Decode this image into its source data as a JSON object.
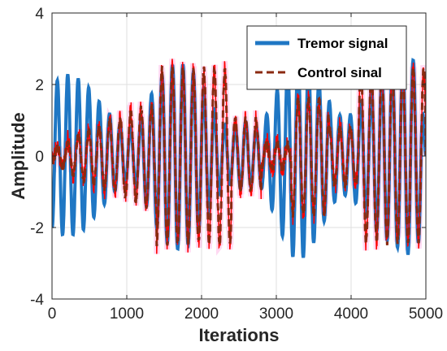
{
  "chart_data": {
    "type": "line",
    "xlabel": "Iterations",
    "ylabel": "Amplitude",
    "xlim": [
      0,
      5000
    ],
    "ylim": [
      -4,
      4
    ],
    "xticks": [
      0,
      1000,
      2000,
      3000,
      4000,
      5000
    ],
    "yticks": [
      -4,
      -2,
      0,
      2,
      4
    ],
    "grid": true,
    "legend_position": "top-right",
    "colors": {
      "tremor": "#1f77c4",
      "control": "#8b2a10",
      "noise": "#ff0000",
      "halo": "#ff66cc"
    },
    "series": [
      {
        "name": "Tremor signal",
        "style": "solid",
        "description_points": {
          "x": [
            0,
            60,
            140,
            200,
            265,
            330,
            395,
            460,
            530,
            600,
            680,
            760,
            840,
            920,
            1000,
            1080,
            1160,
            1240,
            1320,
            1400,
            1480,
            1570,
            1650,
            1720,
            1800,
            1870,
            1940,
            2010,
            2080,
            2150,
            2220,
            2290,
            2360,
            2430,
            2500,
            2570,
            2640,
            2720,
            2800,
            2880,
            2960,
            3040,
            3110,
            3180,
            3250,
            3320,
            3390,
            3460,
            3530,
            3600,
            3670,
            3740,
            3810,
            3880,
            3950,
            4020,
            4090,
            4160,
            4230,
            4300,
            4370,
            4440,
            4510,
            4580,
            4650,
            4720,
            4790,
            4860,
            4930,
            5000
          ],
          "y": [
            -2.0,
            2.1,
            -2.2,
            2.3,
            -2.2,
            2.2,
            -2.1,
            2.0,
            -1.8,
            1.6,
            -1.4,
            1.2,
            -1.0,
            0.9,
            -0.8,
            0.8,
            -1.0,
            1.3,
            -1.7,
            2.0,
            -2.3,
            2.5,
            -2.6,
            2.6,
            -2.5,
            2.4,
            -2.2,
            2.0,
            -1.7,
            1.4,
            -1.1,
            0.9,
            -0.8,
            0.8,
            -0.9,
            1.0,
            -0.9,
            0.8,
            -0.9,
            1.2,
            -1.6,
            2.0,
            -2.4,
            2.7,
            -2.9,
            2.9,
            -2.8,
            2.6,
            -2.3,
            2.0,
            -1.7,
            1.4,
            -1.2,
            1.1,
            -1.1,
            1.2,
            -1.4,
            1.6,
            -1.8,
            2.0,
            -2.2,
            2.3,
            -2.4,
            2.5,
            -2.6,
            2.7,
            -2.8,
            2.6,
            -2.3,
            0.0
          ]
        }
      },
      {
        "name": "Control sinal",
        "style": "dashed"
      }
    ],
    "legend": {
      "entries": [
        "Tremor signal",
        "Control sinal"
      ]
    }
  }
}
